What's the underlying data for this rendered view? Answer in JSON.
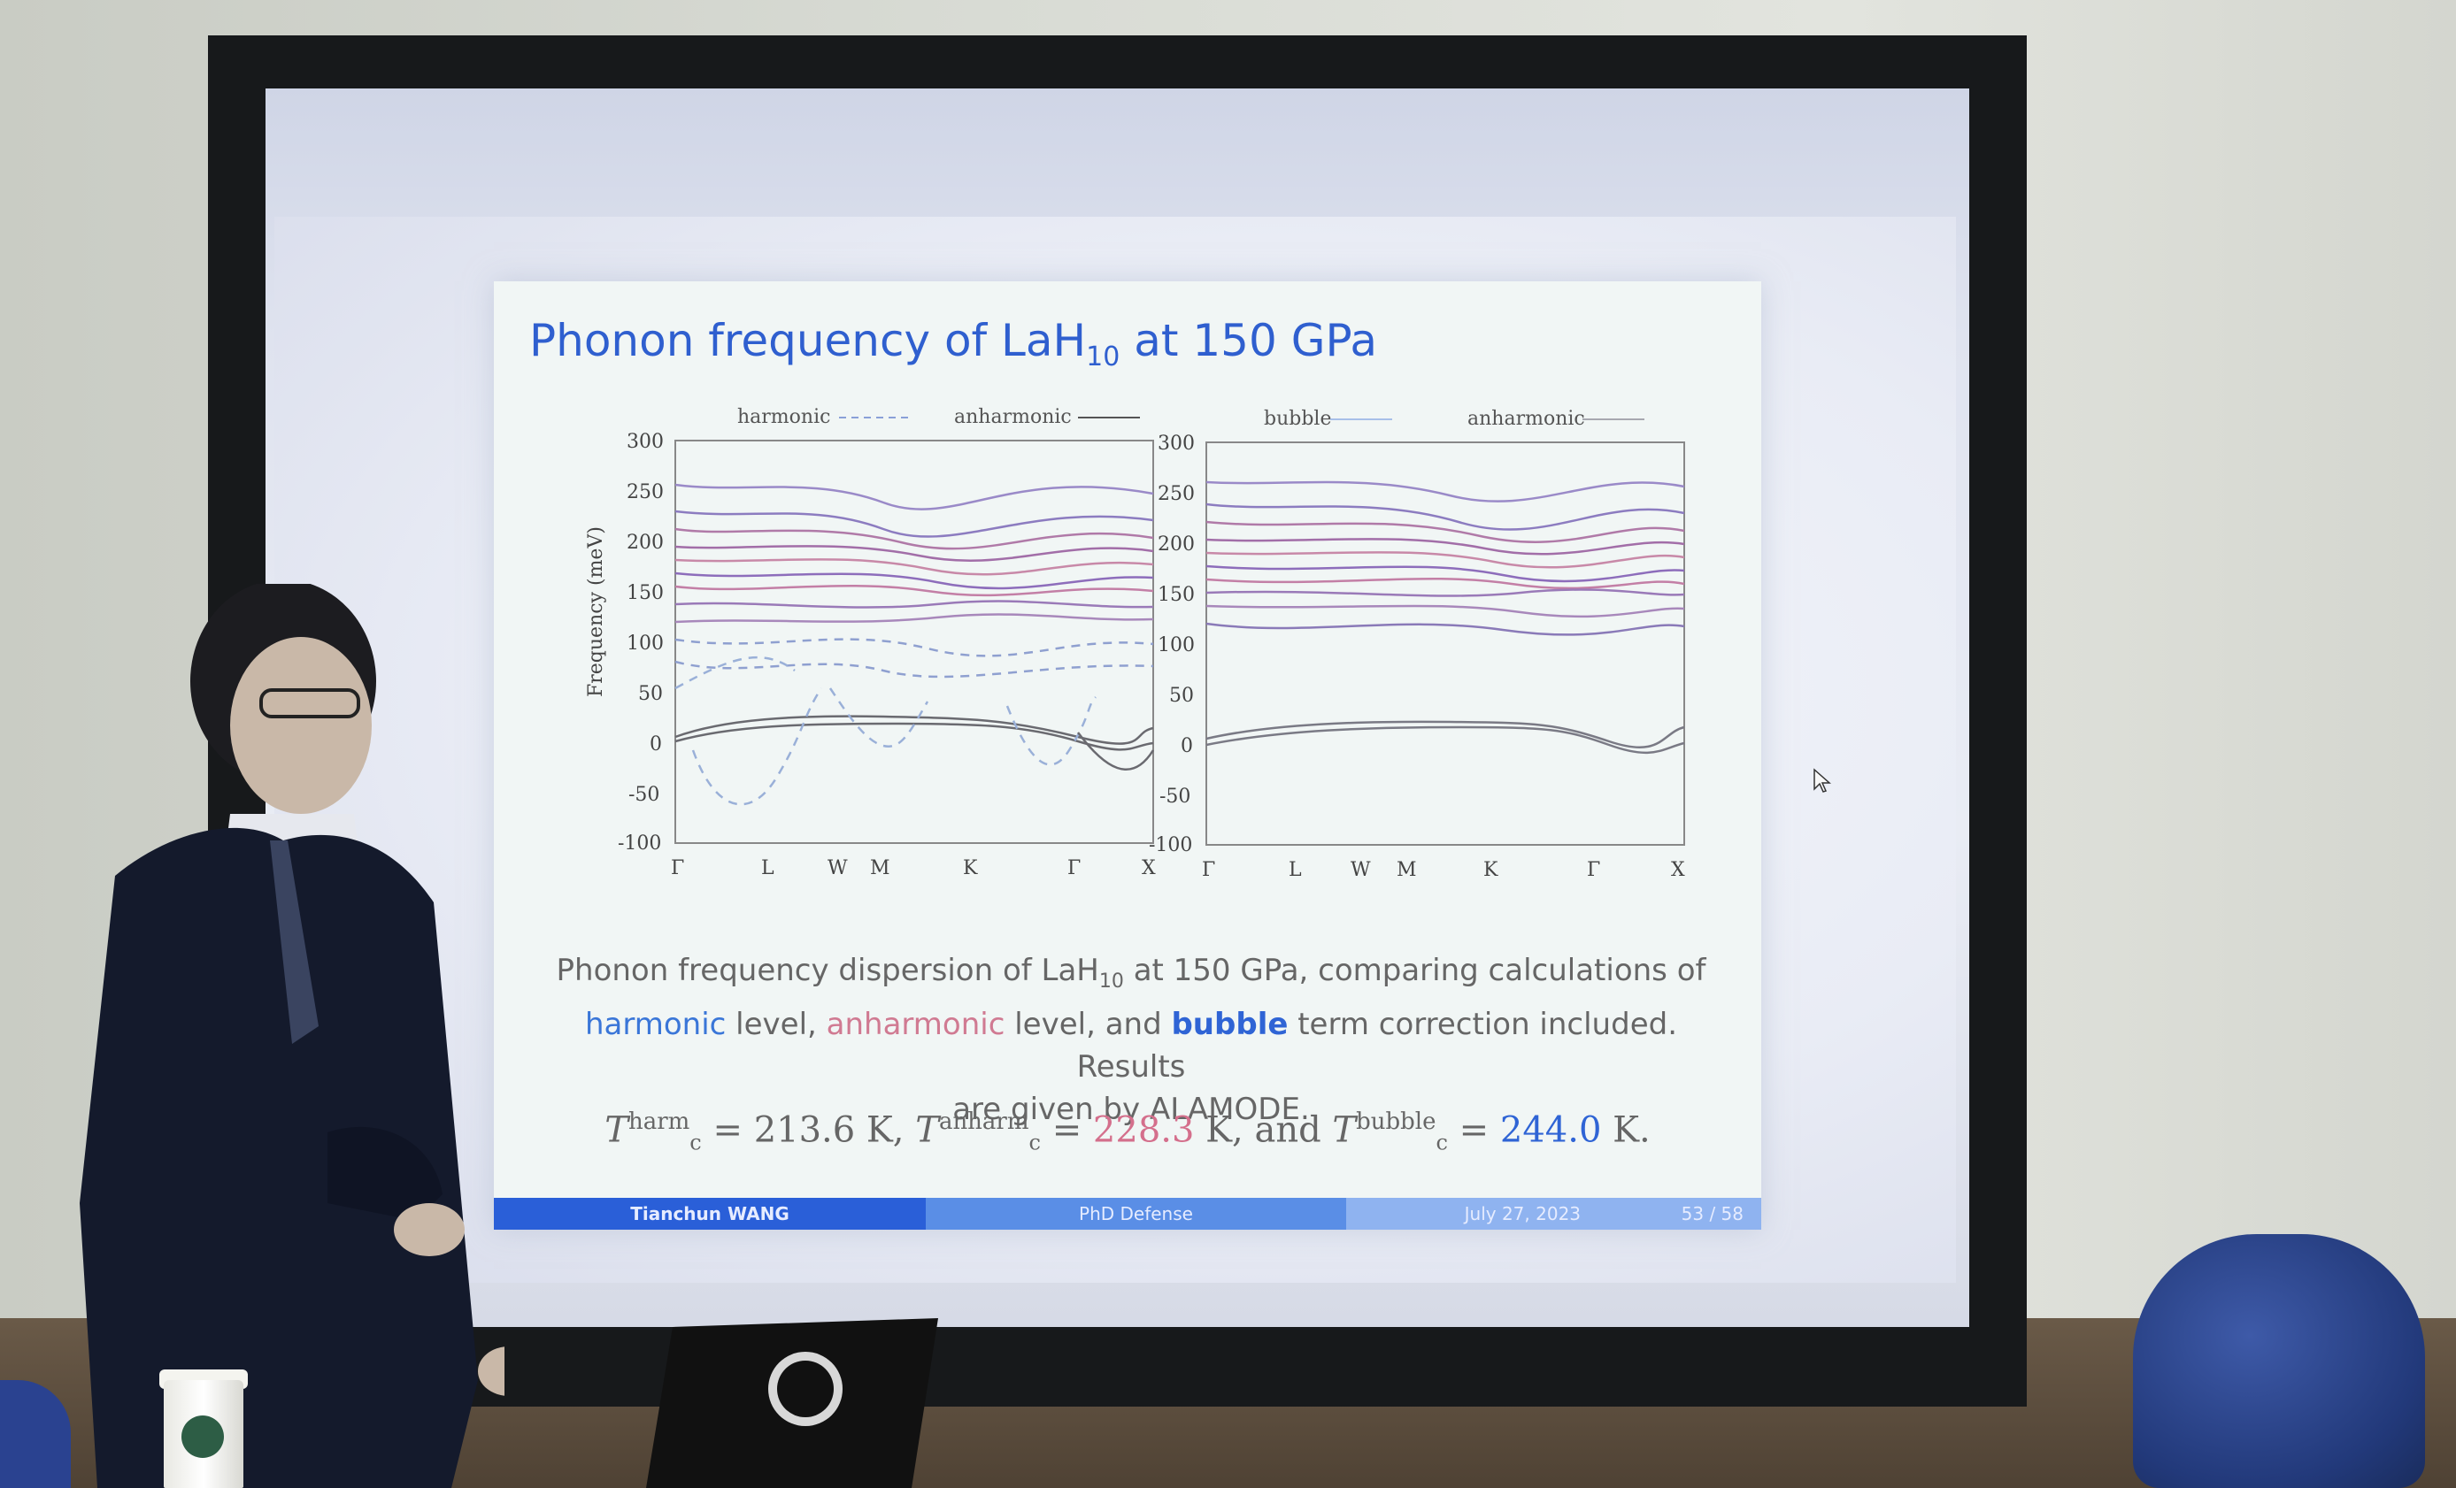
{
  "slide": {
    "title_main": "Phonon frequency of LaH",
    "title_sub": "10",
    "title_rest": " at 150 GPa",
    "caption": {
      "part1": "Phonon frequency dispersion of LaH",
      "part1_sub": "10",
      "part2": " at 150 GPa, comparing calculations of",
      "harmonic": "harmonic",
      "part3": " level, ",
      "anharmonic": "anharmonic",
      "part4": " level, and ",
      "bubble": "bubble",
      "part5": " term correction included. Results",
      "part6": "are given by ALAMODE."
    },
    "formula": {
      "t1_sup": "harm",
      "t1_val": "= 213.6 K,",
      "t2_sup": "anharm",
      "t2_eq": "=",
      "t2_val": "228.3",
      "t2_unit": "K, and",
      "t3_sup": "bubble",
      "t3_eq": "=",
      "t3_val": "244.0",
      "t3_unit": "K.",
      "symbol": "T",
      "sub": "c"
    },
    "footer": {
      "author": "Tianchun WANG",
      "event": "PhD Defense",
      "date": "July 27, 2023",
      "page": "53 / 58"
    }
  },
  "left_plot": {
    "legend": [
      "harmonic",
      "anharmonic"
    ],
    "ylabel": "Frequency (meV)",
    "yticks": [
      "300",
      "250",
      "200",
      "150",
      "100",
      "50",
      "0",
      "-50",
      "-100"
    ],
    "xticks": [
      "Γ",
      "L",
      "W",
      "M",
      "K",
      "Γ",
      "X"
    ]
  },
  "right_plot": {
    "legend": [
      "bubble",
      "anharmonic"
    ],
    "yticks": [
      "300",
      "250",
      "200",
      "150",
      "100",
      "50",
      "0",
      "-50",
      "-100"
    ],
    "xticks": [
      "Γ",
      "L",
      "W",
      "M",
      "K",
      "Γ",
      "X"
    ]
  }
}
